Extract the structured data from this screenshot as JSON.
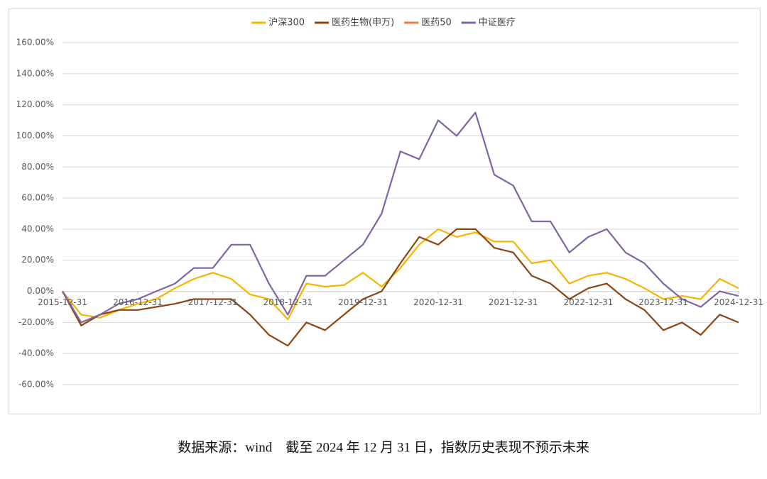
{
  "chart_data": {
    "type": "line",
    "x": [
      "2015-12-31",
      "2016-03-31",
      "2016-06-30",
      "2016-09-30",
      "2016-12-31",
      "2017-03-31",
      "2017-06-30",
      "2017-09-30",
      "2017-12-31",
      "2018-03-31",
      "2018-06-30",
      "2018-09-30",
      "2018-12-31",
      "2019-03-31",
      "2019-06-30",
      "2019-09-30",
      "2019-12-31",
      "2020-03-31",
      "2020-06-30",
      "2020-09-30",
      "2020-12-31",
      "2021-03-31",
      "2021-06-30",
      "2021-09-30",
      "2021-12-31",
      "2022-03-31",
      "2022-06-30",
      "2022-09-30",
      "2022-12-31",
      "2023-03-31",
      "2023-06-30",
      "2023-09-30",
      "2023-12-31",
      "2024-03-31",
      "2024-06-30",
      "2024-09-30",
      "2024-12-31"
    ],
    "series": [
      {
        "name": "沪深300",
        "color": "#f5b400",
        "values": [
          0,
          -15,
          -17,
          -12,
          -8,
          -5,
          2,
          8,
          12,
          8,
          -2,
          -5,
          -18,
          5,
          3,
          4,
          12,
          3,
          15,
          30,
          40,
          35,
          38,
          32,
          32,
          18,
          20,
          5,
          10,
          12,
          8,
          2,
          -5,
          -3,
          -5,
          8,
          2
        ]
      },
      {
        "name": "医药生物(申万)",
        "color": "#8b4510",
        "values": [
          0,
          -22,
          -15,
          -12,
          -12,
          -10,
          -8,
          -5,
          -5,
          -5,
          -15,
          -28,
          -35,
          -20,
          -25,
          -15,
          -5,
          0,
          18,
          35,
          30,
          40,
          40,
          28,
          25,
          10,
          5,
          -5,
          2,
          5,
          -5,
          -12,
          -25,
          -20,
          -28,
          -15,
          -20
        ]
      },
      {
        "name": "医药50",
        "color": "#ed7d31",
        "values": [
          null,
          null,
          null,
          null,
          null,
          null,
          null,
          null,
          null,
          null,
          null,
          null,
          null,
          null,
          null,
          null,
          null,
          null,
          null,
          null,
          null,
          null,
          null,
          null,
          null,
          null,
          null,
          null,
          null,
          null,
          null,
          null,
          null,
          null,
          null,
          null,
          null
        ]
      },
      {
        "name": "中证医疗",
        "color": "#8064a2",
        "values": [
          0,
          -20,
          -15,
          -8,
          -5,
          0,
          5,
          15,
          15,
          30,
          30,
          5,
          -15,
          10,
          10,
          20,
          30,
          50,
          90,
          85,
          110,
          100,
          115,
          75,
          68,
          45,
          45,
          25,
          35,
          40,
          25,
          18,
          5,
          -5,
          -10,
          0,
          -3
        ]
      }
    ],
    "xlim": [
      "2015-12-31",
      "2024-12-31"
    ],
    "xticks": [
      "2015-12-31",
      "2016-12-31",
      "2017-12-31",
      "2018-12-31",
      "2019-12-31",
      "2020-12-31",
      "2021-12-31",
      "2022-12-31",
      "2023-12-31",
      "2024-12-31"
    ],
    "ylim": [
      -60,
      160
    ],
    "yticks": [
      {
        "value": -60,
        "label": "-60.00%"
      },
      {
        "value": -40,
        "label": "-40.00%"
      },
      {
        "value": -20,
        "label": "-20.00%"
      },
      {
        "value": 0,
        "label": "0.00%"
      },
      {
        "value": 20,
        "label": "20.00%"
      },
      {
        "value": 40,
        "label": "40.00%"
      },
      {
        "value": 60,
        "label": "60.00%"
      },
      {
        "value": 80,
        "label": "80.00%"
      },
      {
        "value": 100,
        "label": "100.00%"
      },
      {
        "value": 120,
        "label": "120.00%"
      },
      {
        "value": 140,
        "label": "140.00%"
      },
      {
        "value": 160,
        "label": "160.00%"
      }
    ],
    "grid": true,
    "legend": "top",
    "source": "数据来源：wind　截至 2024 年 12 月 31 日，指数历史表现不预示未来"
  }
}
